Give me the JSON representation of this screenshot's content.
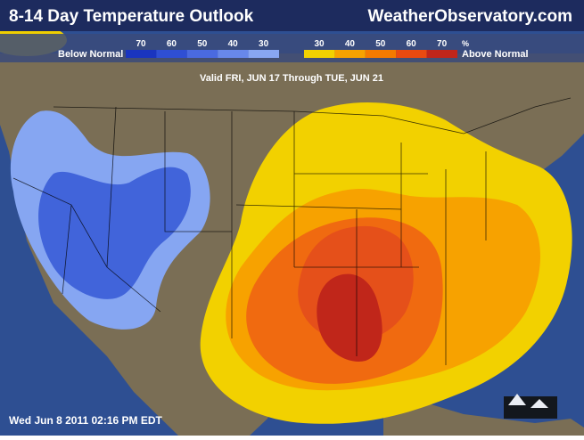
{
  "header": {
    "title": "8-14 Day Temperature Outlook",
    "site": "WeatherObservatory.com"
  },
  "legend": {
    "below_label": "Below Normal",
    "above_label": "Above Normal",
    "below_ticks": [
      "70",
      "60",
      "50",
      "40",
      "30"
    ],
    "above_ticks": [
      "30",
      "40",
      "50",
      "60",
      "70"
    ],
    "unit": "%"
  },
  "map": {
    "valid": "Valid FRI, JUN 17 Through TUE, JUN 21"
  },
  "footer": {
    "timestamp": "Wed Jun 8 2011 02:16 PM EDT"
  }
}
